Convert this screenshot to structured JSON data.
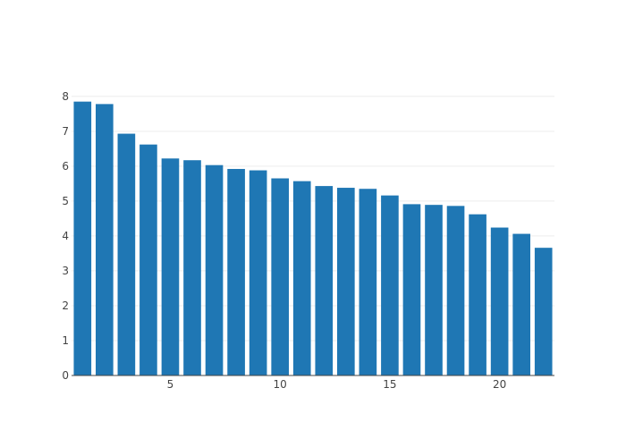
{
  "chart_data": {
    "type": "bar",
    "x": [
      1,
      2,
      3,
      4,
      5,
      6,
      7,
      8,
      9,
      10,
      11,
      12,
      13,
      14,
      15,
      16,
      17,
      18,
      19,
      20,
      21,
      22
    ],
    "values": [
      7.85,
      7.78,
      6.93,
      6.62,
      6.22,
      6.17,
      6.03,
      5.92,
      5.88,
      5.65,
      5.57,
      5.43,
      5.38,
      5.35,
      5.16,
      4.91,
      4.89,
      4.86,
      4.62,
      4.24,
      4.06,
      3.66
    ],
    "xlim": [
      0.5,
      22.5
    ],
    "ylim": [
      0,
      8.2
    ],
    "xticks": [
      5,
      10,
      15,
      20
    ],
    "yticks": [
      0,
      1,
      2,
      3,
      4,
      5,
      6,
      7,
      8
    ],
    "title": "",
    "xlabel": "",
    "ylabel": "",
    "bar_color": "#1f77b4",
    "grid": true,
    "grid_color": "#eeeeee",
    "axis_color": "#444444"
  }
}
